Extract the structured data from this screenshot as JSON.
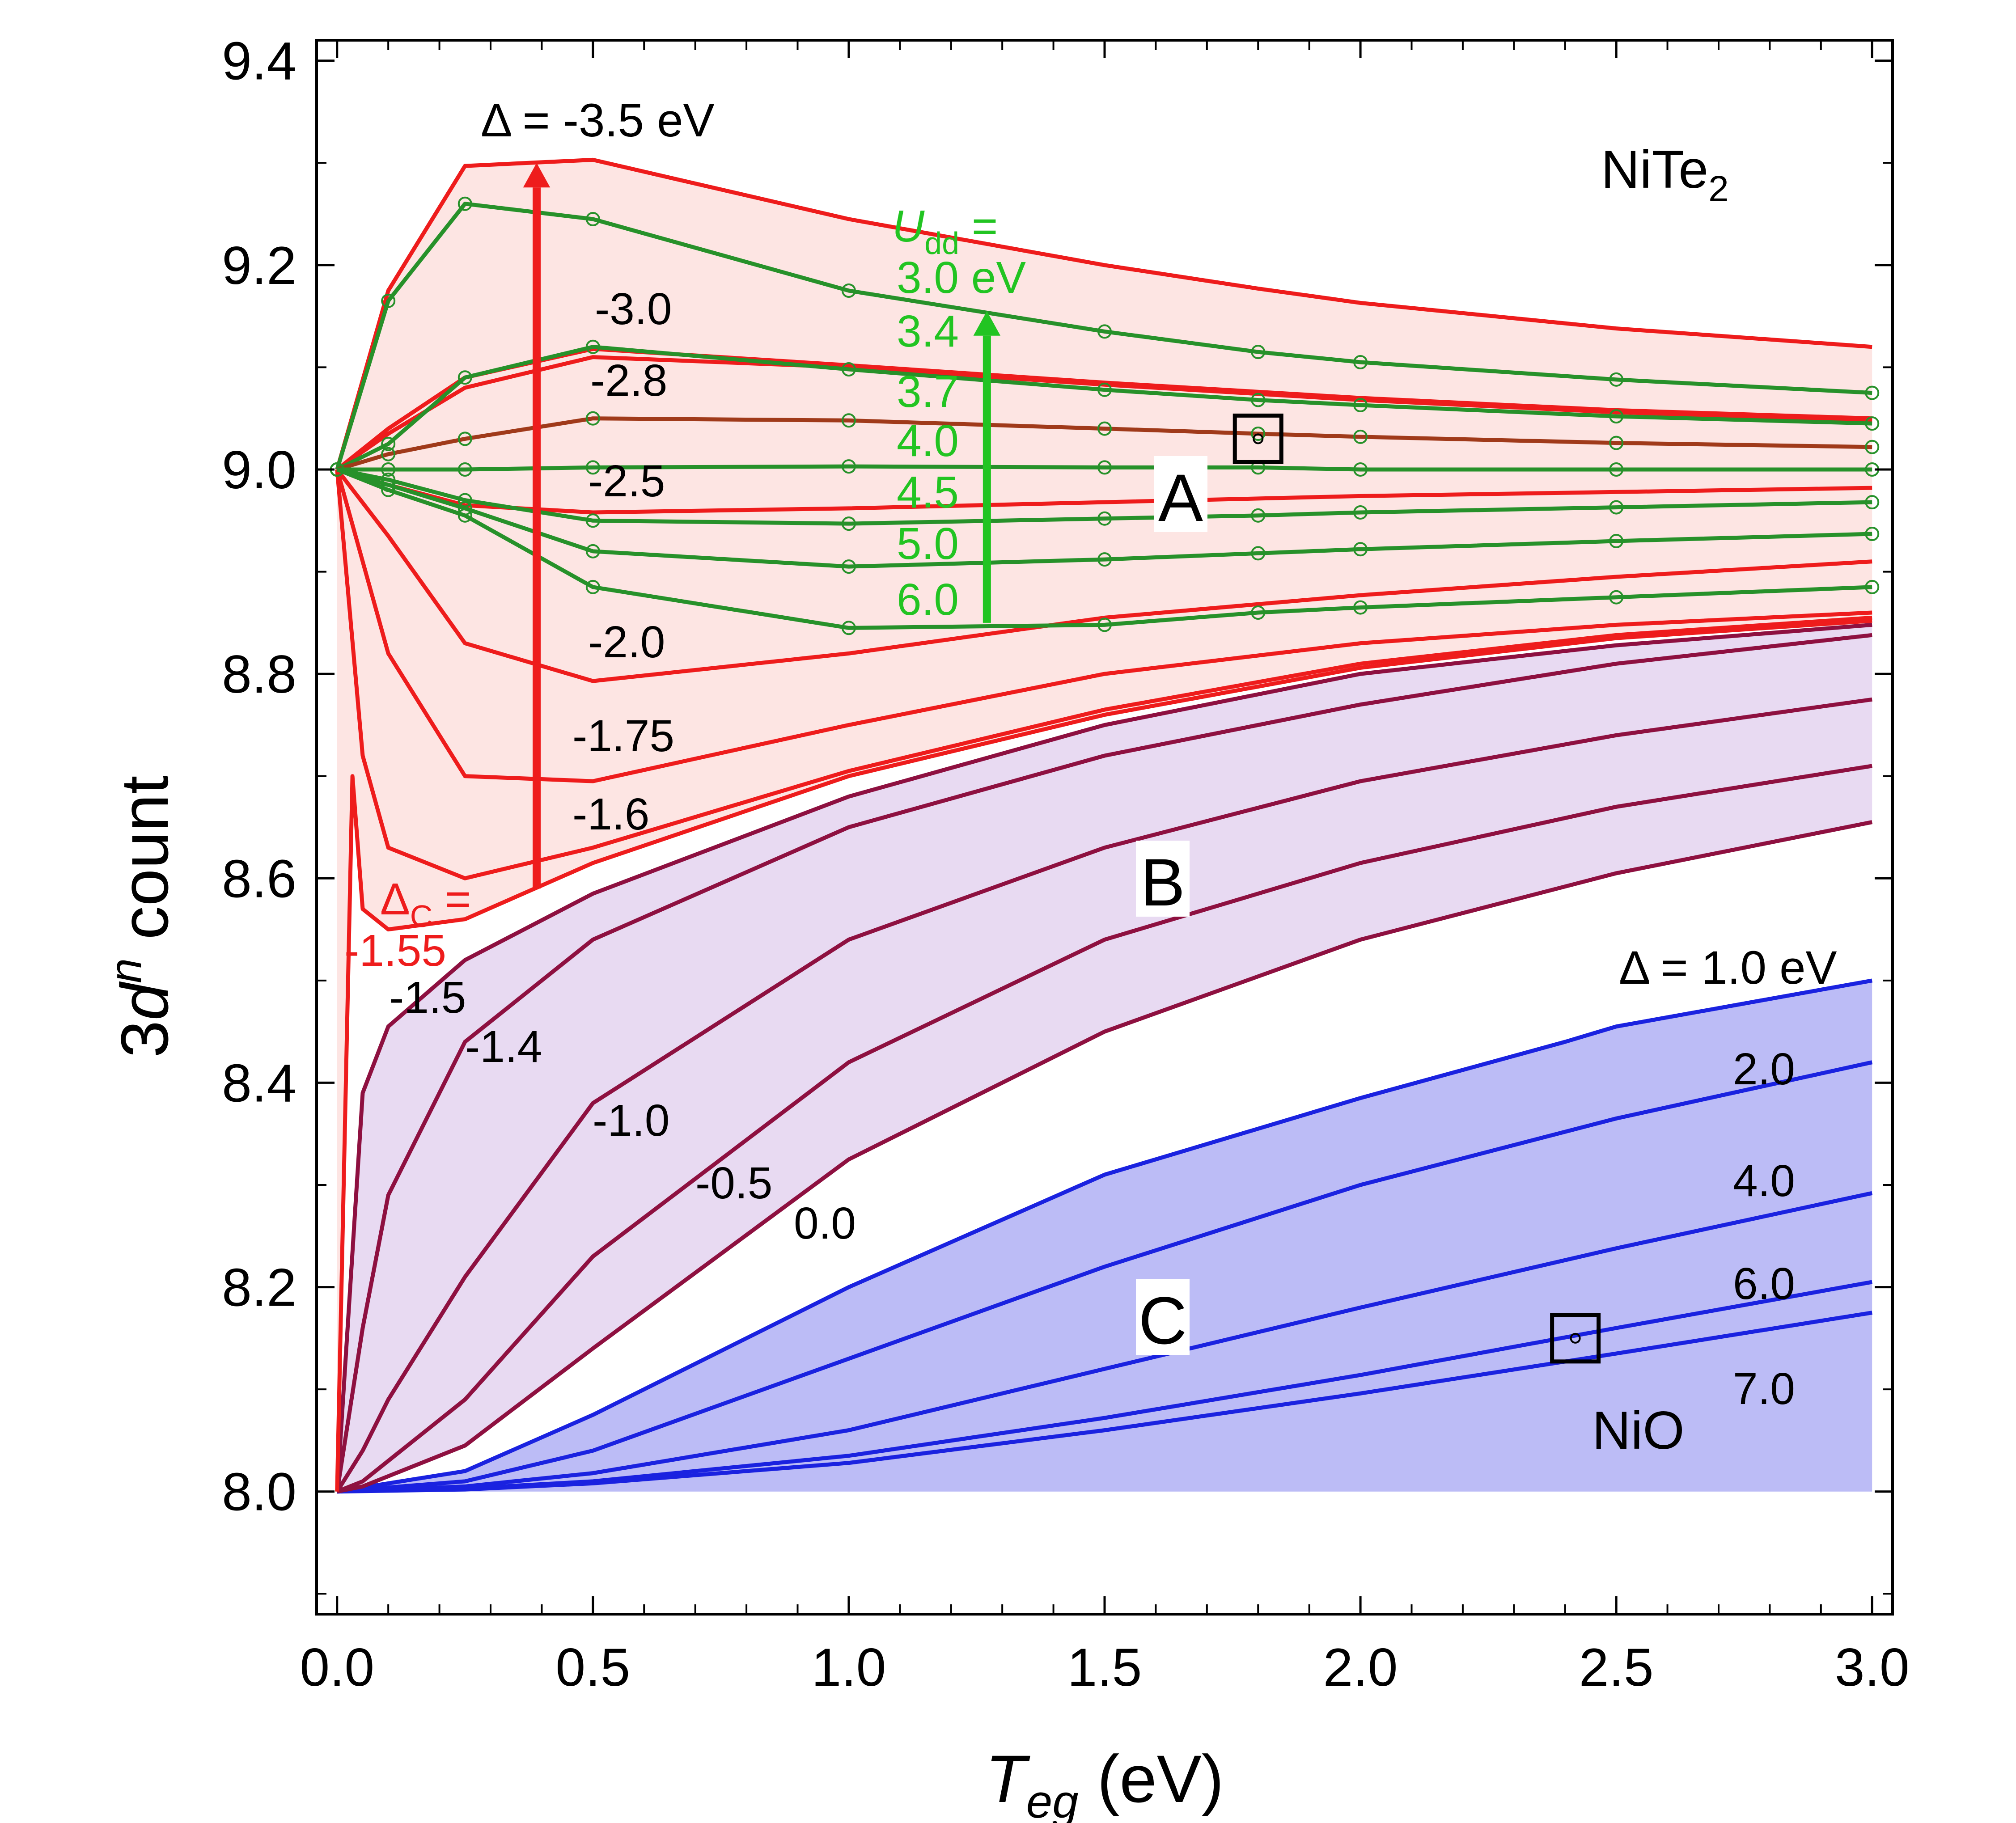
{
  "chart_data": {
    "type": "line",
    "xlabel_main": "T",
    "xlabel_sub": "eg",
    "xlabel_unit": " (eV)",
    "ylabel_pre": "3",
    "ylabel_d": "d",
    "ylabel_sup": "n",
    "ylabel_post": " count",
    "xlim": [
      -0.04,
      3.04
    ],
    "ylim": [
      7.88,
      9.42
    ],
    "x_ticks": [
      "0.0",
      "0.5",
      "1.0",
      "1.5",
      "2.0",
      "2.5",
      "3.0"
    ],
    "x_tick_values": [
      0,
      0.5,
      1.0,
      1.5,
      2.0,
      2.5,
      3.0
    ],
    "y_ticks": [
      "8.0",
      "8.2",
      "8.4",
      "8.6",
      "8.8",
      "9.0",
      "9.2",
      "9.4"
    ],
    "y_tick_values": [
      8.0,
      8.2,
      8.4,
      8.6,
      8.8,
      9.0,
      9.2,
      9.4
    ],
    "colors": {
      "regionA_fill": "#fde5e3",
      "regionB_fill": "#e8daf2",
      "regionC_fill": "#bcbcf6",
      "red": "#ee1c1c",
      "maroon": "#8e1040",
      "blue": "#1a22e0",
      "green": "#27912a",
      "bright_green": "#22c422",
      "brown": "#a03a1a",
      "black": "#000000"
    },
    "regions": [
      {
        "name": "A",
        "fill": "regionA_fill"
      },
      {
        "name": "B",
        "fill": "regionB_fill"
      },
      {
        "name": "C",
        "fill": "regionC_fill"
      }
    ],
    "series_red": [
      {
        "name": "-3.5",
        "x": [
          0,
          0.1,
          0.25,
          0.5,
          1.0,
          1.5,
          1.8,
          2.0,
          2.5,
          3.0
        ],
        "values": [
          9.0,
          9.175,
          9.297,
          9.303,
          9.245,
          9.2,
          9.177,
          9.163,
          9.138,
          9.12
        ]
      },
      {
        "name": "-3.0",
        "x": [
          0,
          0.1,
          0.25,
          0.5,
          1.0,
          1.5,
          2.0,
          2.5,
          3.0
        ],
        "values": [
          9.0,
          9.04,
          9.09,
          9.118,
          9.102,
          9.085,
          9.07,
          9.058,
          9.05
        ]
      },
      {
        "name": "-2.8",
        "x": [
          0,
          0.1,
          0.25,
          0.5,
          1.0,
          1.5,
          2.0,
          2.5,
          3.0
        ],
        "values": [
          9.0,
          9.035,
          9.08,
          9.11,
          9.1,
          9.083,
          9.068,
          9.056,
          9.048
        ]
      },
      {
        "name": "-2.5",
        "x": [
          0,
          0.1,
          0.25,
          0.5,
          1.0,
          1.5,
          2.0,
          2.5,
          3.0
        ],
        "values": [
          9.0,
          8.985,
          8.965,
          8.958,
          8.962,
          8.968,
          8.974,
          8.978,
          8.982
        ]
      },
      {
        "name": "-2.0",
        "x": [
          0,
          0.1,
          0.25,
          0.5,
          1.0,
          1.5,
          2.0,
          2.5,
          3.0
        ],
        "values": [
          9.0,
          8.935,
          8.83,
          8.793,
          8.82,
          8.855,
          8.877,
          8.895,
          8.91
        ]
      },
      {
        "name": "-1.75",
        "x": [
          0,
          0.1,
          0.25,
          0.5,
          1.0,
          1.5,
          2.0,
          2.5,
          3.0
        ],
        "values": [
          9.0,
          8.82,
          8.7,
          8.695,
          8.75,
          8.8,
          8.83,
          8.848,
          8.86
        ]
      },
      {
        "name": "-1.6",
        "x": [
          0,
          0.05,
          0.1,
          0.25,
          0.5,
          1.0,
          1.5,
          2.0,
          2.5,
          3.0
        ],
        "values": [
          9.0,
          8.72,
          8.63,
          8.6,
          8.63,
          8.705,
          8.765,
          8.81,
          8.838,
          8.855
        ]
      },
      {
        "name": "-1.55",
        "x": [
          0,
          0.03,
          0.05,
          0.1,
          0.25,
          0.5,
          1.0,
          1.5,
          2.0,
          2.5,
          3.0
        ],
        "values": [
          8.0,
          8.7,
          8.57,
          8.55,
          8.56,
          8.615,
          8.7,
          8.76,
          8.806,
          8.835,
          8.852
        ]
      }
    ],
    "series_maroon": [
      {
        "name": "-1.5",
        "x": [
          0,
          0.05,
          0.1,
          0.25,
          0.5,
          1.0,
          1.5,
          2.0,
          2.5,
          3.0
        ],
        "values": [
          8.0,
          8.39,
          8.455,
          8.52,
          8.585,
          8.68,
          8.75,
          8.8,
          8.828,
          8.848
        ]
      },
      {
        "name": "-1.4",
        "x": [
          0,
          0.05,
          0.1,
          0.25,
          0.5,
          1.0,
          1.5,
          2.0,
          2.5,
          3.0
        ],
        "values": [
          8.0,
          8.16,
          8.29,
          8.44,
          8.54,
          8.65,
          8.72,
          8.77,
          8.81,
          8.838
        ]
      },
      {
        "name": "-1.0",
        "x": [
          0,
          0.05,
          0.1,
          0.25,
          0.5,
          1.0,
          1.5,
          2.0,
          2.5,
          3.0
        ],
        "values": [
          8.0,
          8.04,
          8.09,
          8.21,
          8.38,
          8.54,
          8.63,
          8.695,
          8.74,
          8.775
        ]
      },
      {
        "name": "-0.5",
        "x": [
          0,
          0.05,
          0.1,
          0.25,
          0.5,
          1.0,
          1.5,
          2.0,
          2.5,
          3.0
        ],
        "values": [
          8.0,
          8.01,
          8.03,
          8.09,
          8.23,
          8.42,
          8.54,
          8.615,
          8.67,
          8.71
        ]
      },
      {
        "name": "0.0",
        "x": [
          0,
          0.05,
          0.1,
          0.25,
          0.5,
          1.0,
          1.5,
          2.0,
          2.5,
          3.0
        ],
        "values": [
          8.0,
          8.005,
          8.015,
          8.045,
          8.14,
          8.325,
          8.45,
          8.54,
          8.605,
          8.655
        ]
      }
    ],
    "series_blue": [
      {
        "name": "1.0",
        "x": [
          0,
          0.25,
          0.5,
          1.0,
          1.5,
          2.0,
          2.4,
          2.5,
          3.0
        ],
        "values": [
          8.0,
          8.02,
          8.075,
          8.2,
          8.31,
          8.385,
          8.44,
          8.455,
          8.5
        ]
      },
      {
        "name": "2.0",
        "x": [
          0,
          0.25,
          0.5,
          1.0,
          1.5,
          2.0,
          2.5,
          3.0
        ],
        "values": [
          8.0,
          8.01,
          8.04,
          8.13,
          8.22,
          8.3,
          8.365,
          8.42
        ]
      },
      {
        "name": "4.0",
        "x": [
          0,
          0.25,
          0.5,
          1.0,
          1.5,
          2.0,
          2.5,
          3.0
        ],
        "values": [
          8.0,
          8.005,
          8.018,
          8.06,
          8.12,
          8.18,
          8.238,
          8.292
        ]
      },
      {
        "name": "6.0",
        "x": [
          0,
          0.25,
          0.5,
          1.0,
          1.5,
          2.0,
          2.5,
          3.0
        ],
        "values": [
          8.0,
          8.003,
          8.01,
          8.035,
          8.072,
          8.114,
          8.16,
          8.205
        ]
      },
      {
        "name": "7.0",
        "x": [
          0,
          0.25,
          0.5,
          1.0,
          1.5,
          2.0,
          2.5,
          3.0
        ],
        "values": [
          8.0,
          8.002,
          8.008,
          8.028,
          8.06,
          8.096,
          8.135,
          8.175
        ]
      }
    ],
    "series_green": [
      {
        "name": "3.0",
        "x": [
          0,
          0.1,
          0.25,
          0.5,
          1.0,
          1.5,
          1.8,
          2.0,
          2.5,
          3.0
        ],
        "values": [
          9.0,
          9.165,
          9.26,
          9.245,
          9.175,
          9.135,
          9.115,
          9.105,
          9.088,
          9.075
        ]
      },
      {
        "name": "3.4",
        "x": [
          0,
          0.1,
          0.25,
          0.5,
          1.0,
          1.5,
          1.8,
          2.0,
          2.5,
          3.0
        ],
        "values": [
          9.0,
          9.025,
          9.09,
          9.12,
          9.098,
          9.078,
          9.068,
          9.063,
          9.052,
          9.045
        ]
      },
      {
        "name": "3.7",
        "x": [
          0,
          0.1,
          0.25,
          0.5,
          1.0,
          1.5,
          1.8,
          2.0,
          2.5,
          3.0
        ],
        "values": [
          9.0,
          9.015,
          9.03,
          9.05,
          9.048,
          9.04,
          9.035,
          9.032,
          9.026,
          9.022
        ]
      },
      {
        "name": "4.0",
        "x": [
          0,
          0.1,
          0.25,
          0.5,
          1.0,
          1.5,
          1.8,
          2.0,
          2.5,
          3.0
        ],
        "values": [
          9.0,
          9.0,
          9.0,
          9.002,
          9.003,
          9.002,
          9.002,
          9.0,
          9.0,
          9.0
        ]
      },
      {
        "name": "4.5",
        "x": [
          0,
          0.1,
          0.25,
          0.5,
          1.0,
          1.5,
          1.8,
          2.0,
          2.5,
          3.0
        ],
        "values": [
          9.0,
          8.99,
          8.97,
          8.95,
          8.947,
          8.952,
          8.955,
          8.958,
          8.963,
          8.968
        ]
      },
      {
        "name": "5.0",
        "x": [
          0,
          0.1,
          0.25,
          0.5,
          1.0,
          1.5,
          1.8,
          2.0,
          2.5,
          3.0
        ],
        "values": [
          9.0,
          8.985,
          8.962,
          8.92,
          8.905,
          8.912,
          8.918,
          8.922,
          8.93,
          8.937
        ]
      },
      {
        "name": "6.0",
        "x": [
          0,
          0.1,
          0.25,
          0.5,
          1.0,
          1.5,
          1.8,
          2.0,
          2.5,
          3.0
        ],
        "values": [
          9.0,
          8.98,
          8.955,
          8.885,
          8.845,
          8.848,
          8.86,
          8.865,
          8.875,
          8.885
        ]
      }
    ],
    "markers": [
      {
        "name": "NiTe2-point",
        "x": 1.8,
        "y": 9.03
      },
      {
        "name": "NiO-point",
        "x": 2.42,
        "y": 8.15
      }
    ],
    "arrows": [
      {
        "name": "red-arrow",
        "x": 0.39,
        "y_from": 8.59,
        "y_to": 9.3
      },
      {
        "name": "green-arrow",
        "x": 1.27,
        "y_from": 8.85,
        "y_to": 9.155
      }
    ],
    "labels": {
      "compound_main": "NiTe",
      "compound_sub": "2",
      "nio": "NiO",
      "region_a": "A",
      "region_b": "B",
      "region_c": "C",
      "delta_top": "Δ = -3.5 eV",
      "delta_blue": "Δ = 1.0 eV",
      "delta_c_main": "Δ",
      "delta_c_sub": "C",
      "delta_c_eq": " =",
      "delta_c_val": "-1.55",
      "udd_main": "U",
      "udd_sub": "dd",
      "udd_eq": " =",
      "udd_first": "3.0 eV",
      "red_labels": [
        "-3.0",
        "-2.8",
        "-2.5",
        "-2.0",
        "-1.75",
        "-1.6"
      ],
      "maroon_labels": [
        "-1.5",
        "-1.4",
        "-1.0",
        "-0.5",
        "0.0"
      ],
      "blue_labels": [
        "2.0",
        "4.0",
        "6.0",
        "7.0"
      ],
      "green_labels": [
        "3.4",
        "3.7",
        "4.0",
        "4.5",
        "5.0",
        "6.0"
      ]
    }
  }
}
